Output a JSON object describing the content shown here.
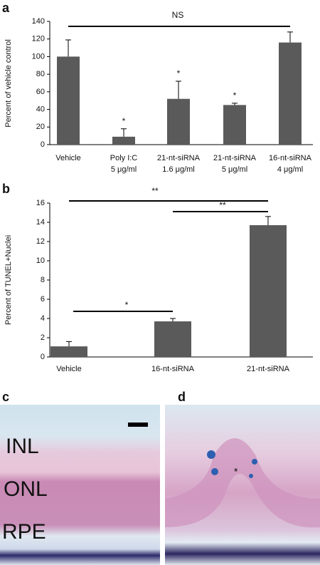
{
  "chart_data": [
    {
      "type": "bar",
      "panel": "a",
      "y_label": "Percent of vehicle control",
      "categories": [
        [
          "Vehicle"
        ],
        [
          "Poly I:C",
          "5 μg/ml"
        ],
        [
          "21-nt-siRNA",
          "1.6 μg/ml"
        ],
        [
          "21-nt-siRNA",
          "5 μg/ml"
        ],
        [
          "16-nt-siRNA",
          "4 μg/ml"
        ]
      ],
      "values": [
        100,
        9,
        52,
        45,
        116
      ],
      "errors": [
        19,
        9,
        20,
        2,
        12
      ],
      "color": "#5a5a5a",
      "ylim": [
        0,
        140
      ],
      "yticks": [
        0,
        20,
        40,
        60,
        80,
        100,
        120,
        140
      ],
      "annotations": [
        "NS",
        "*",
        "*",
        "*"
      ]
    },
    {
      "type": "bar",
      "panel": "b",
      "y_label": "Percent of TUNEL+Nuclei",
      "categories": [
        [
          "Vehicle"
        ],
        [
          "16-nt-siRNA"
        ],
        [
          "21-nt-siRNA"
        ]
      ],
      "values": [
        1.1,
        3.7,
        13.7
      ],
      "errors": [
        0.5,
        0.3,
        0.9
      ],
      "color": "#5a5a5a",
      "ylim": [
        0,
        16
      ],
      "yticks": [
        0,
        2,
        4,
        6,
        8,
        10,
        12,
        14,
        16
      ],
      "annotations": [
        "**",
        "**",
        "*"
      ]
    }
  ],
  "images": [
    {
      "panel": "c",
      "labels": [
        "INL",
        "ONL",
        "RPE"
      ]
    },
    {
      "panel": "d",
      "labels": [
        "*"
      ]
    }
  ]
}
